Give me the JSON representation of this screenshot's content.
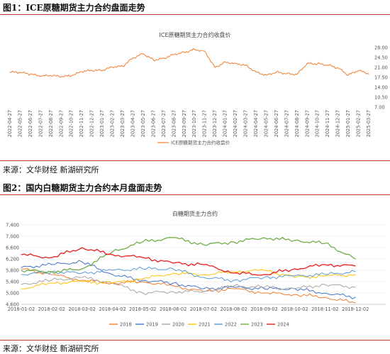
{
  "figure1": {
    "header": "图1：ICE原糖期货主力合约盘面走势",
    "source": "来源：文华财经  新湖研究所"
  },
  "figure2": {
    "header": "图2：国内白糖期货主力合约本月盘面走势",
    "source": "来源：文华财经  新湖研究所"
  },
  "chart_data": [
    {
      "type": "line",
      "title": "ICE原糖期货主力合约收盘价",
      "xlabel": "",
      "ylabel": "",
      "ylim": [
        7.0,
        28.0
      ],
      "y_ticks": [
        "28.00",
        "24.50",
        "21.00",
        "17.50",
        "14.00",
        "10.50",
        "7.00"
      ],
      "grid": false,
      "legend_position": "bottom",
      "color": "#f0883e",
      "categories": [
        "2022-04-27",
        "2022-05-27",
        "2022-06-27",
        "2022-07-27",
        "2022-08-27",
        "2022-09-27",
        "2022-10-27",
        "2022-11-27",
        "2022-12-27",
        "2023-01-27",
        "2023-02-27",
        "2023-03-27",
        "2023-04-27",
        "2023-05-27",
        "2023-06-27",
        "2023-07-27",
        "2023-08-27",
        "2023-09-27",
        "2023-10-27",
        "2023-11-27",
        "2023-12-27",
        "2024-01-27",
        "2024-02-27",
        "2024-03-27",
        "2024-04-27",
        "2024-05-27",
        "2024-06-27",
        "2024-07-27",
        "2024-08-27",
        "2024-09-27",
        "2024-10-27",
        "2024-11-27",
        "2024-12-27",
        "2025-01-27",
        "2025-02-27",
        "2025-03-27"
      ],
      "series": [
        {
          "name": "ICE原糖期货主力合约收盘价",
          "values": [
            19.3,
            19.2,
            18.6,
            17.9,
            18.1,
            17.7,
            18.0,
            19.5,
            19.9,
            19.9,
            21.1,
            21.4,
            24.3,
            25.8,
            23.6,
            24.2,
            25.6,
            26.3,
            27.4,
            26.7,
            21.0,
            22.9,
            22.4,
            21.8,
            19.4,
            18.3,
            19.4,
            18.8,
            18.6,
            22.4,
            22.3,
            21.8,
            20.8,
            18.3,
            19.9,
            18.7
          ]
        }
      ]
    },
    {
      "type": "line",
      "title": "白糖期货主力合约",
      "xlabel": "",
      "ylabel": "",
      "ylim": [
        4600,
        7400
      ],
      "y_ticks": [
        "7,400",
        "7,000",
        "6,600",
        "6,200",
        "5,800",
        "5,400",
        "5,000",
        "4,600"
      ],
      "grid": true,
      "legend_position": "bottom",
      "categories": [
        "2018-01-02",
        "2018-02-02",
        "2018-03-02",
        "2018-04-02",
        "2018-05-02",
        "2018-06-02",
        "2018-07-02",
        "2018-08-02",
        "2018-09-02",
        "2018-10-02",
        "2018-11-02",
        "2018-12-02"
      ],
      "series": [
        {
          "name": "2018",
          "color": "#ed7d31",
          "values": [
            5850,
            5650,
            5450,
            5350,
            5400,
            5250,
            5050,
            5150,
            5000,
            4950,
            4850,
            4650
          ]
        },
        {
          "name": "2019",
          "color": "#4472c4",
          "values": [
            5900,
            6000,
            6100,
            5650,
            5450,
            5350,
            5150,
            5200,
            5150,
            5150,
            5000,
            4850
          ]
        },
        {
          "name": "2020",
          "color": "#a5a5a5",
          "values": [
            5300,
            5450,
            5550,
            5350,
            5000,
            5050,
            5050,
            5250,
            5200,
            5150,
            5300,
            5200
          ]
        },
        {
          "name": "2021",
          "color": "#ffc000",
          "values": [
            5150,
            5350,
            5400,
            5350,
            5500,
            5700,
            5650,
            5750,
            5800,
            5550,
            5600,
            5650
          ]
        },
        {
          "name": "2022",
          "color": "#5b9bd5",
          "values": [
            5650,
            5750,
            5700,
            5800,
            5850,
            5850,
            5550,
            5450,
            5550,
            5600,
            5650,
            5750
          ]
        },
        {
          "name": "2023",
          "color": "#70ad47",
          "values": [
            5800,
            5750,
            5850,
            6450,
            6800,
            6950,
            6700,
            6800,
            6950,
            6850,
            6750,
            6200
          ]
        },
        {
          "name": "2024",
          "color": "#e81d1d",
          "values": [
            6350,
            6250,
            6600,
            6350,
            6250,
            6050,
            6000,
            5700,
            5650,
            5850,
            6000,
            5950
          ]
        }
      ]
    }
  ]
}
